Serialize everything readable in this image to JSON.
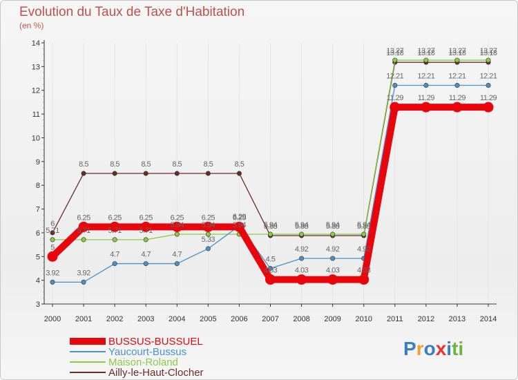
{
  "title": "Evolution du Taux de Taxe d'Habitation",
  "subtitle": "(en %)",
  "logo": {
    "letters": [
      "P",
      "r",
      "o",
      "x",
      "i",
      "t",
      "i"
    ],
    "colors": [
      "#3b7dc4",
      "#f0a030",
      "#3b7dc4",
      "#e8342c",
      "#3b7dc4",
      "#6cb33f",
      "#6cb33f"
    ]
  },
  "chart_data": {
    "type": "line",
    "title": "Evolution du Taux de Taxe d'Habitation",
    "ylabel": "(en %)",
    "xlabel": "",
    "ylim": [
      3,
      14
    ],
    "yticks": [
      3,
      4,
      5,
      6,
      7,
      8,
      9,
      10,
      11,
      12,
      13,
      14
    ],
    "categories": [
      "2000",
      "2001",
      "2002",
      "2003",
      "2004",
      "2005",
      "2006",
      "2007",
      "2008",
      "2009",
      "2010",
      "2011",
      "2012",
      "2013",
      "2014"
    ],
    "legend_position": "bottom-left",
    "series": [
      {
        "name": "BUSSUS-BUSSUEL",
        "color": "#e8050c",
        "values": [
          5,
          6.25,
          6.25,
          6.25,
          6.25,
          6.25,
          6.25,
          4.03,
          4.03,
          4.03,
          4.03,
          11.29,
          11.29,
          11.29,
          11.29
        ],
        "labels": [
          "5",
          "6.25",
          "6.25",
          "6.25",
          "6.25",
          "6.25",
          "6.25",
          "4.03",
          "4.03",
          "4.03",
          "4.03",
          "11.29",
          "11.29",
          "11.29",
          "11.29"
        ]
      },
      {
        "name": "Yaucourt-Bussus",
        "color": "#4a90c8",
        "values": [
          3.92,
          3.92,
          4.7,
          4.7,
          4.7,
          5.33,
          6.29,
          4.5,
          4.92,
          4.92,
          4.92,
          12.21,
          12.21,
          12.21,
          12.21
        ],
        "labels": [
          "3.92",
          "3.92",
          "4.7",
          "4.7",
          "4.7",
          "5.33",
          "6.29",
          "4.5",
          "4.92",
          "4.92",
          "4.92",
          "12.21",
          "12.21",
          "12.21",
          "12.21"
        ]
      },
      {
        "name": "Maison-Roland",
        "color": "#88cc44",
        "values": [
          5.71,
          5.71,
          5.71,
          5.71,
          5.94,
          5.94,
          5.94,
          5.94,
          5.94,
          5.94,
          5.94,
          13.27,
          13.27,
          13.27,
          13.27
        ],
        "labels": [
          "5.71",
          "5.71",
          "5.71",
          "5.71",
          "5.94",
          "5.94",
          "5.94",
          "5.94",
          "5.94",
          "5.94",
          "5.94",
          "13.27",
          "13.27",
          "13.27",
          "13.27"
        ]
      },
      {
        "name": "Ailly-le-Haut-Clocher",
        "color": "#6b2a2a",
        "values": [
          6,
          8.5,
          8.5,
          8.5,
          8.5,
          8.5,
          8.5,
          5.88,
          5.88,
          5.88,
          5.88,
          13.18,
          13.18,
          13.18,
          13.18
        ],
        "labels": [
          "6",
          "8.5",
          "8.5",
          "8.5",
          "8.5",
          "8.5",
          "8.5",
          "5.88",
          "5.88",
          "5.88",
          "5.88",
          "13.18",
          "13.18",
          "13.18",
          "13.18"
        ]
      }
    ]
  }
}
